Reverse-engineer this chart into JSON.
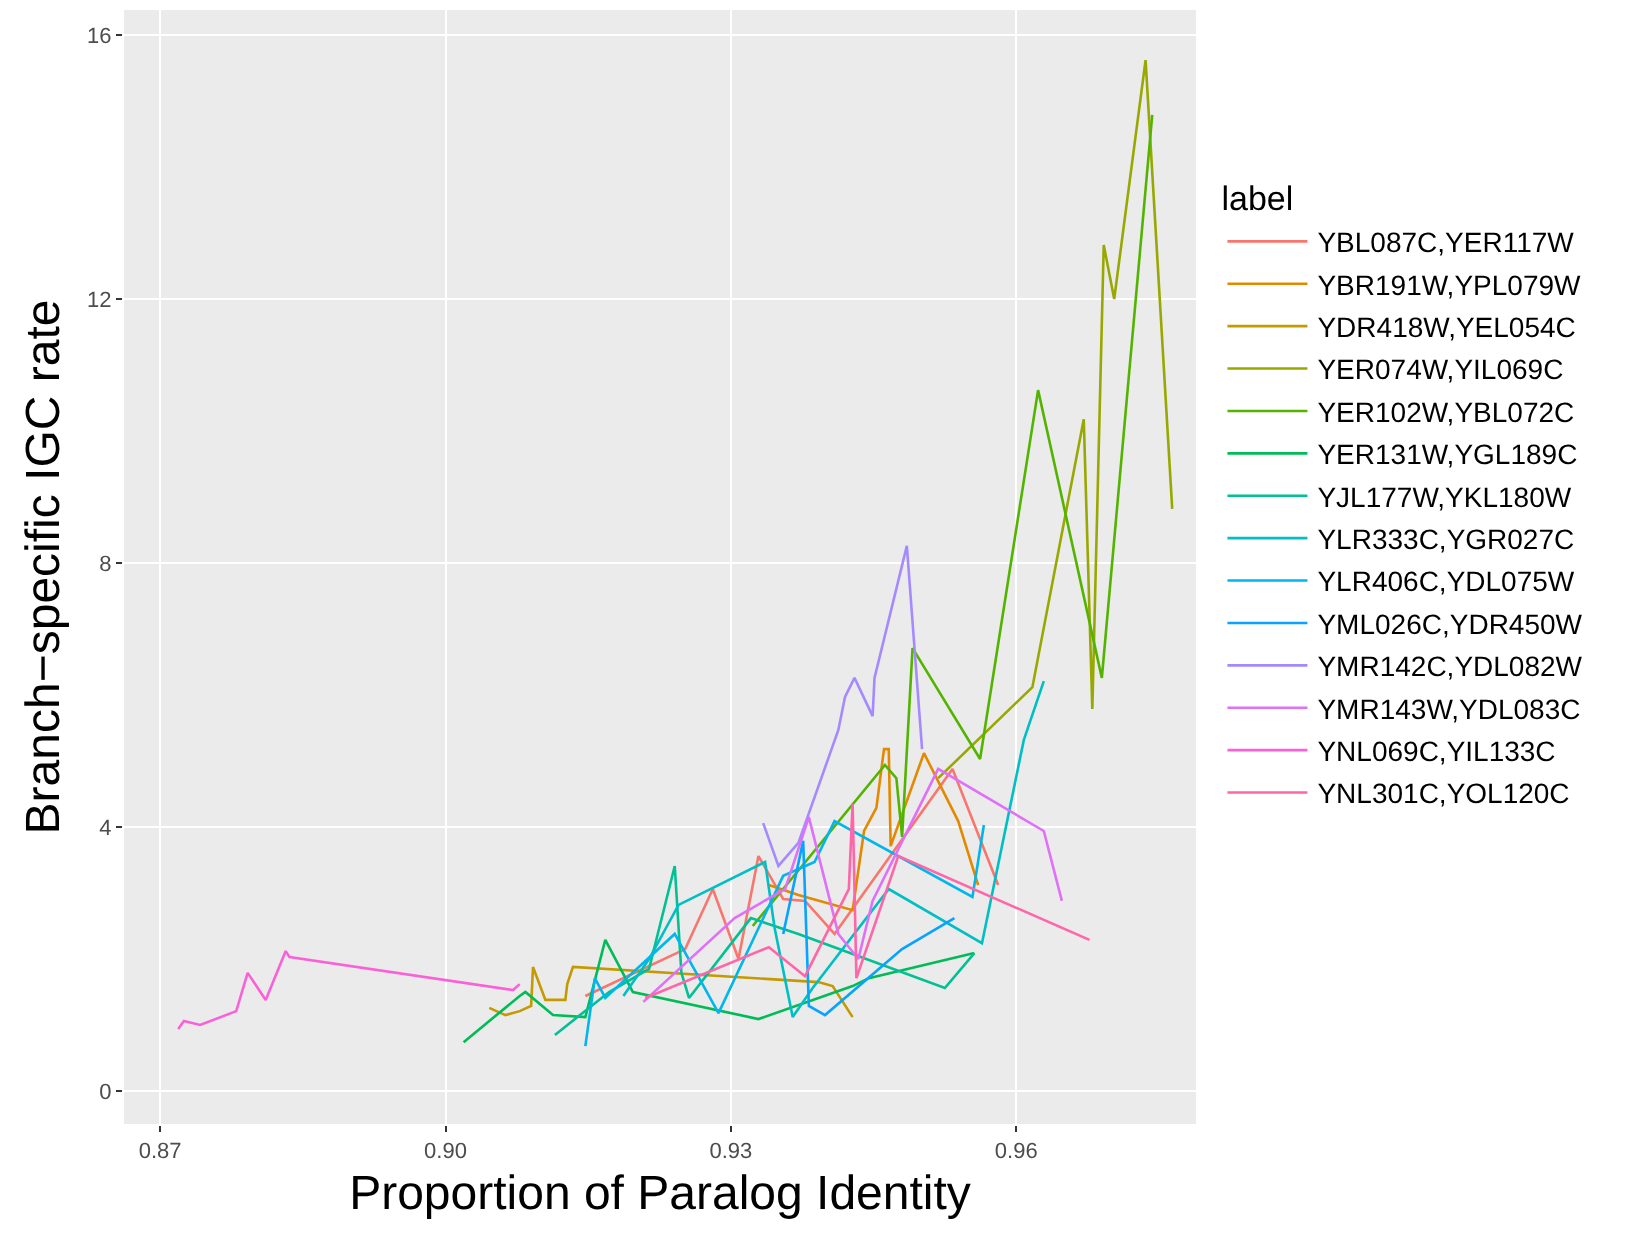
{
  "chart_data": {
    "type": "line",
    "xlabel": "Proportion of Paralog Identity",
    "ylabel": "Branch−specific IGC rate",
    "legend_title": "label",
    "legend": "right",
    "grid": true,
    "marker": "none",
    "line_style": "solid",
    "xlim": [
      0.8662,
      0.9789
    ],
    "xticks": [
      0.87,
      {
        "value": 0.9,
        "label": "0.90"
      },
      0.93,
      0.96
    ],
    "ylim": [
      -0.5,
      16.38
    ],
    "yticks": [
      0,
      4,
      8,
      12,
      16
    ],
    "series": [
      {
        "name": "YBL087C,YER117W",
        "color": "#F8766D",
        "x": [
          0.9147,
          0.9252,
          0.9281,
          0.9308,
          0.9329,
          0.9355,
          0.9378,
          0.9409,
          0.9533,
          0.9581
        ],
        "values": [
          1.44,
          2.15,
          3.06,
          2.0,
          3.56,
          2.91,
          2.88,
          2.38,
          4.88,
          3.12
        ]
      },
      {
        "name": "YBR191W,YPL079W",
        "color": "#E38900",
        "x": [
          0.934,
          0.9371,
          0.9428,
          0.944,
          0.9453,
          0.9461,
          0.9466,
          0.9468,
          0.9503,
          0.9539,
          0.956
        ],
        "values": [
          3.12,
          2.97,
          2.74,
          3.94,
          4.29,
          5.18,
          5.18,
          3.71,
          5.12,
          4.09,
          3.12
        ]
      },
      {
        "name": "YDR418W,YEL054C",
        "color": "#C49A00",
        "x": [
          0.9046,
          0.9063,
          0.9078,
          0.909,
          0.9092,
          0.9105,
          0.9126,
          0.9128,
          0.9134,
          0.9392,
          0.9407,
          0.9428
        ],
        "values": [
          1.26,
          1.15,
          1.21,
          1.29,
          1.88,
          1.38,
          1.38,
          1.62,
          1.88,
          1.65,
          1.59,
          1.12
        ]
      },
      {
        "name": "YER074W,YIL069C",
        "color": "#99A800",
        "x": [
          0.9518,
          0.9617,
          0.9671,
          0.968,
          0.9692,
          0.9703,
          0.9736,
          0.9764
        ],
        "values": [
          4.74,
          6.12,
          10.18,
          5.79,
          12.82,
          12.0,
          15.62,
          8.82
        ]
      },
      {
        "name": "YER102W,YBL072C",
        "color": "#53B400",
        "x": [
          0.9323,
          0.9462,
          0.9474,
          0.948,
          0.9491,
          0.9562,
          0.9623,
          0.969,
          0.9743
        ],
        "values": [
          2.5,
          4.94,
          4.74,
          3.85,
          6.71,
          5.03,
          10.62,
          6.26,
          14.79
        ]
      },
      {
        "name": "YER131W,YGL189C",
        "color": "#00BC56",
        "x": [
          0.9019,
          0.9078,
          0.9084,
          0.9113,
          0.9147,
          0.9168,
          0.9197,
          0.9329,
          0.9428,
          0.9445,
          0.9556
        ],
        "values": [
          0.74,
          1.44,
          1.5,
          1.15,
          1.12,
          2.29,
          1.5,
          1.09,
          1.59,
          1.71,
          2.09
        ]
      },
      {
        "name": "YJL177W,YKL180W",
        "color": "#00C094",
        "x": [
          0.9115,
          0.9172,
          0.9214,
          0.9241,
          0.9248,
          0.9256,
          0.9321,
          0.9371,
          0.9525,
          0.9556
        ],
        "values": [
          0.85,
          1.5,
          1.85,
          3.41,
          1.79,
          1.41,
          2.62,
          2.38,
          1.56,
          2.09
        ]
      },
      {
        "name": "YLR333C,YGR027C",
        "color": "#00BFC4",
        "x": [
          0.9187,
          0.9214,
          0.9245,
          0.9336,
          0.9346,
          0.9365,
          0.9386,
          0.9466,
          0.9564,
          0.9608,
          0.9629
        ],
        "values": [
          1.44,
          2.0,
          2.82,
          3.47,
          2.47,
          1.12,
          1.56,
          3.06,
          2.24,
          5.32,
          6.21
        ]
      },
      {
        "name": "YLR406C,YDL075W",
        "color": "#00B6EB",
        "x": [
          0.9147,
          0.9157,
          0.9168,
          0.9241,
          0.9287,
          0.9355,
          0.9388,
          0.9409,
          0.9554,
          0.9566
        ],
        "values": [
          0.68,
          1.71,
          1.41,
          2.38,
          1.18,
          3.26,
          3.47,
          4.09,
          2.94,
          4.03
        ]
      },
      {
        "name": "YML026C,YDR450W",
        "color": "#06A4FF",
        "x": [
          0.9355,
          0.9376,
          0.9382,
          0.9399,
          0.948,
          0.9535
        ],
        "values": [
          2.38,
          3.79,
          1.29,
          1.15,
          2.15,
          2.62
        ]
      },
      {
        "name": "YMR142C,YDL082W",
        "color": "#A58AFF",
        "x": [
          0.9334,
          0.935,
          0.9371,
          0.9413,
          0.942,
          0.943,
          0.9449,
          0.9451,
          0.9485,
          0.9501
        ],
        "values": [
          4.06,
          3.41,
          3.76,
          5.47,
          5.97,
          6.26,
          5.68,
          6.26,
          8.26,
          5.18
        ]
      },
      {
        "name": "YMR143W,YDL083C",
        "color": "#DF70F8",
        "x": [
          0.9208,
          0.9304,
          0.9357,
          0.9382,
          0.9413,
          0.9434,
          0.9449,
          0.9518,
          0.9629,
          0.9648
        ],
        "values": [
          1.35,
          2.62,
          3.06,
          4.15,
          2.38,
          2.0,
          2.88,
          4.88,
          3.94,
          2.88
        ]
      },
      {
        "name": "YNL069C,YIL133C",
        "color": "#FB61D7",
        "x": [
          0.8719,
          0.8725,
          0.8742,
          0.878,
          0.8792,
          0.8811,
          0.8832,
          0.8836,
          0.9071,
          0.9078
        ],
        "values": [
          0.94,
          1.06,
          1.0,
          1.21,
          1.79,
          1.38,
          2.12,
          2.03,
          1.53,
          1.62
        ]
      },
      {
        "name": "YNL301C,YOL120C",
        "color": "#FF66A8",
        "x": [
          0.921,
          0.934,
          0.9378,
          0.9424,
          0.9428,
          0.9432,
          0.9476,
          0.9677
        ],
        "values": [
          1.41,
          2.18,
          1.74,
          3.06,
          4.35,
          1.71,
          3.56,
          2.29
        ]
      }
    ]
  }
}
